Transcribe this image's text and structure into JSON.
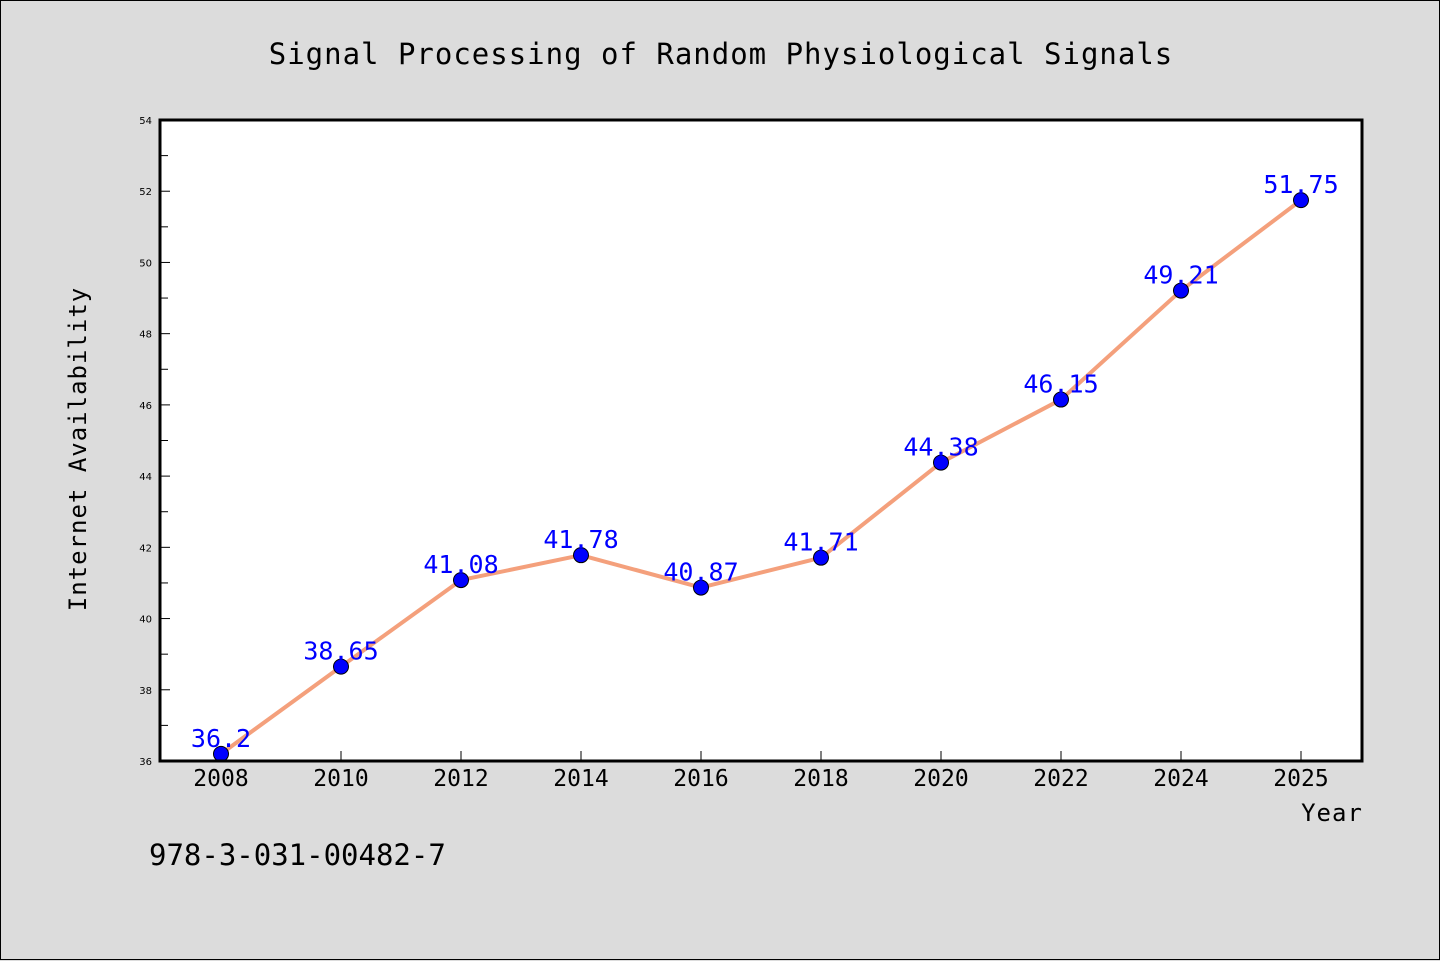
{
  "chart_data": {
    "type": "line",
    "title": "Signal Processing of Random Physiological Signals",
    "xlabel": "Year",
    "ylabel": "Internet Availability",
    "x": [
      "2008",
      "2010",
      "2012",
      "2014",
      "2016",
      "2018",
      "2020",
      "2022",
      "2024",
      "2025"
    ],
    "series": [
      {
        "values": [
          36.2,
          38.65,
          41.08,
          41.78,
          40.87,
          41.71,
          44.38,
          46.15,
          49.21,
          51.75
        ],
        "data_labels": [
          "36.2",
          "38.65",
          "41.08",
          "41.78",
          "40.87",
          "41.71",
          "44.38",
          "46.15",
          "49.21",
          "51.75"
        ],
        "line_color": "#f4a07c",
        "marker_color": "#0000ff",
        "marker_edge_color": "#000000"
      }
    ],
    "ylim": [
      36,
      54
    ],
    "yticks": [
      "36",
      "38",
      "40",
      "42",
      "44",
      "46",
      "48",
      "50",
      "52",
      "54"
    ],
    "grid": false,
    "legend": "none",
    "label_color": "#0000ff",
    "plot_background": "#ffffff",
    "figure_background": "#dcdcdc"
  },
  "footer": {
    "text": "978-3-031-00482-7"
  }
}
